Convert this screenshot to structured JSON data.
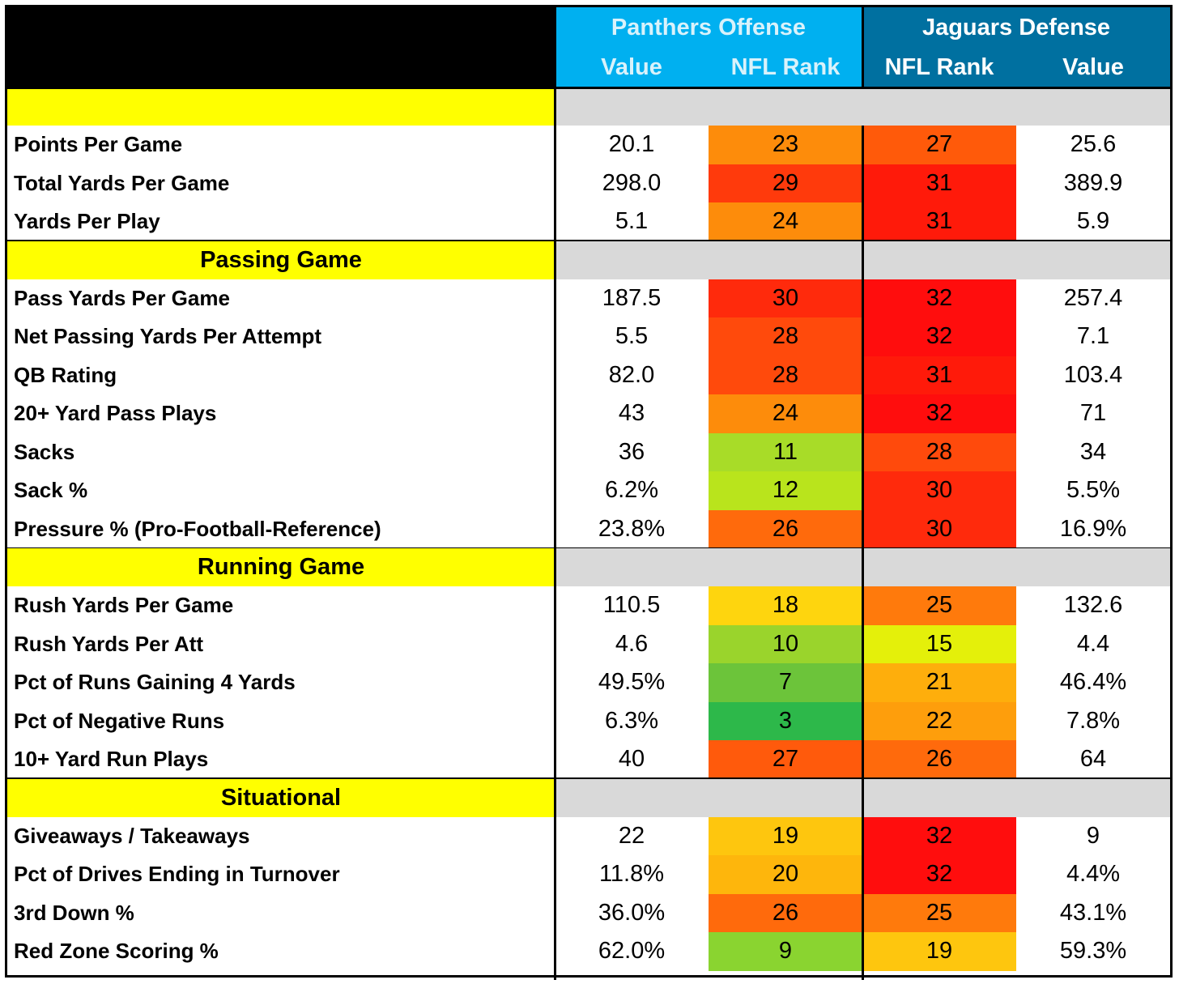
{
  "header": {
    "offense_title": "Panthers Offense",
    "defense_title": "Jaguars Defense",
    "col_value": "Value",
    "col_rank": "NFL Rank"
  },
  "colors": {
    "offense_header": "#00b0f0",
    "defense_header": "#0070a0",
    "section_yellow": "#ffff00",
    "section_gray": "#d9d9d9"
  },
  "sections": [
    {
      "title": "",
      "rows": [
        {
          "label": "Points Per Game",
          "off_value": "20.1",
          "off_rank": "23",
          "off_color": "#fd8c0b",
          "def_rank": "27",
          "def_color": "#ff5a0a",
          "def_value": "25.6"
        },
        {
          "label": "Total Yards Per Game",
          "off_value": "298.0",
          "off_rank": "29",
          "off_color": "#ff3a0c",
          "def_rank": "31",
          "def_color": "#ff1a0a",
          "def_value": "389.9"
        },
        {
          "label": "Yards Per Play",
          "off_value": "5.1",
          "off_rank": "24",
          "off_color": "#fd8c0b",
          "def_rank": "31",
          "def_color": "#ff1a0a",
          "def_value": "5.9"
        }
      ]
    },
    {
      "title": "Passing Game",
      "rows": [
        {
          "label": "Pass Yards Per Game",
          "off_value": "187.5",
          "off_rank": "30",
          "off_color": "#ff2a0c",
          "def_rank": "32",
          "def_color": "#ff0d0d",
          "def_value": "257.4"
        },
        {
          "label": "Net Passing Yards Per Attempt",
          "off_value": "5.5",
          "off_rank": "28",
          "off_color": "#ff4a0c",
          "def_rank": "32",
          "def_color": "#ff0d0d",
          "def_value": "7.1"
        },
        {
          "label": "QB Rating",
          "off_value": "82.0",
          "off_rank": "28",
          "off_color": "#ff4a0c",
          "def_rank": "31",
          "def_color": "#ff1a0a",
          "def_value": "103.4"
        },
        {
          "label": "20+ Yard Pass Plays",
          "off_value": "43",
          "off_rank": "24",
          "off_color": "#fd8c0b",
          "def_rank": "32",
          "def_color": "#ff0d0d",
          "def_value": "71"
        },
        {
          "label": "Sacks",
          "off_value": "36",
          "off_rank": "11",
          "off_color": "#a8dc28",
          "def_rank": "28",
          "def_color": "#ff4a0c",
          "def_value": "34"
        },
        {
          "label": "Sack %",
          "off_value": "6.2%",
          "off_rank": "12",
          "off_color": "#b9e41c",
          "def_rank": "30",
          "def_color": "#ff2a0c",
          "def_value": "5.5%"
        },
        {
          "label": "Pressure % (Pro-Football-Reference)",
          "off_value": "23.8%",
          "off_rank": "26",
          "off_color": "#ff6a0c",
          "def_rank": "30",
          "def_color": "#ff2a0c",
          "def_value": "16.9%"
        }
      ]
    },
    {
      "title": "Running Game",
      "rows": [
        {
          "label": "Rush Yards Per Game",
          "off_value": "110.5",
          "off_rank": "18",
          "off_color": "#fed50e",
          "def_rank": "25",
          "def_color": "#ff7a0c",
          "def_value": "132.6"
        },
        {
          "label": "Rush Yards Per Att",
          "off_value": "4.6",
          "off_rank": "10",
          "off_color": "#9ad42c",
          "def_rank": "15",
          "def_color": "#e4f00a",
          "def_value": "4.4"
        },
        {
          "label": "Pct of Runs Gaining 4 Yards",
          "off_value": "49.5%",
          "off_rank": "7",
          "off_color": "#6cc43a",
          "def_rank": "21",
          "def_color": "#feae0c",
          "def_value": "46.4%"
        },
        {
          "label": "Pct of Negative Runs",
          "off_value": "6.3%",
          "off_rank": "3",
          "off_color": "#2db84a",
          "def_rank": "22",
          "def_color": "#fe9e0c",
          "def_value": "7.8%"
        },
        {
          "label": "10+ Yard Run Plays",
          "off_value": "40",
          "off_rank": "27",
          "off_color": "#ff5a0c",
          "def_rank": "26",
          "def_color": "#ff6a0c",
          "def_value": "64"
        }
      ]
    },
    {
      "title": "Situational",
      "rows": [
        {
          "label": "Giveaways / Takeaways",
          "off_value": "22",
          "off_rank": "19",
          "off_color": "#fec60e",
          "def_rank": "32",
          "def_color": "#ff0d0d",
          "def_value": "9"
        },
        {
          "label": "Pct of Drives Ending in Turnover",
          "off_value": "11.8%",
          "off_rank": "20",
          "off_color": "#feb60c",
          "def_rank": "32",
          "def_color": "#ff0d0d",
          "def_value": "4.4%"
        },
        {
          "label": "3rd Down %",
          "off_value": "36.0%",
          "off_rank": "26",
          "off_color": "#ff6a0c",
          "def_rank": "25",
          "def_color": "#ff7a0c",
          "def_value": "43.1%"
        },
        {
          "label": "Red Zone Scoring %",
          "off_value": "62.0%",
          "off_rank": "9",
          "off_color": "#8ad430",
          "def_rank": "19",
          "def_color": "#fec60e",
          "def_value": "59.3%"
        }
      ]
    }
  ]
}
